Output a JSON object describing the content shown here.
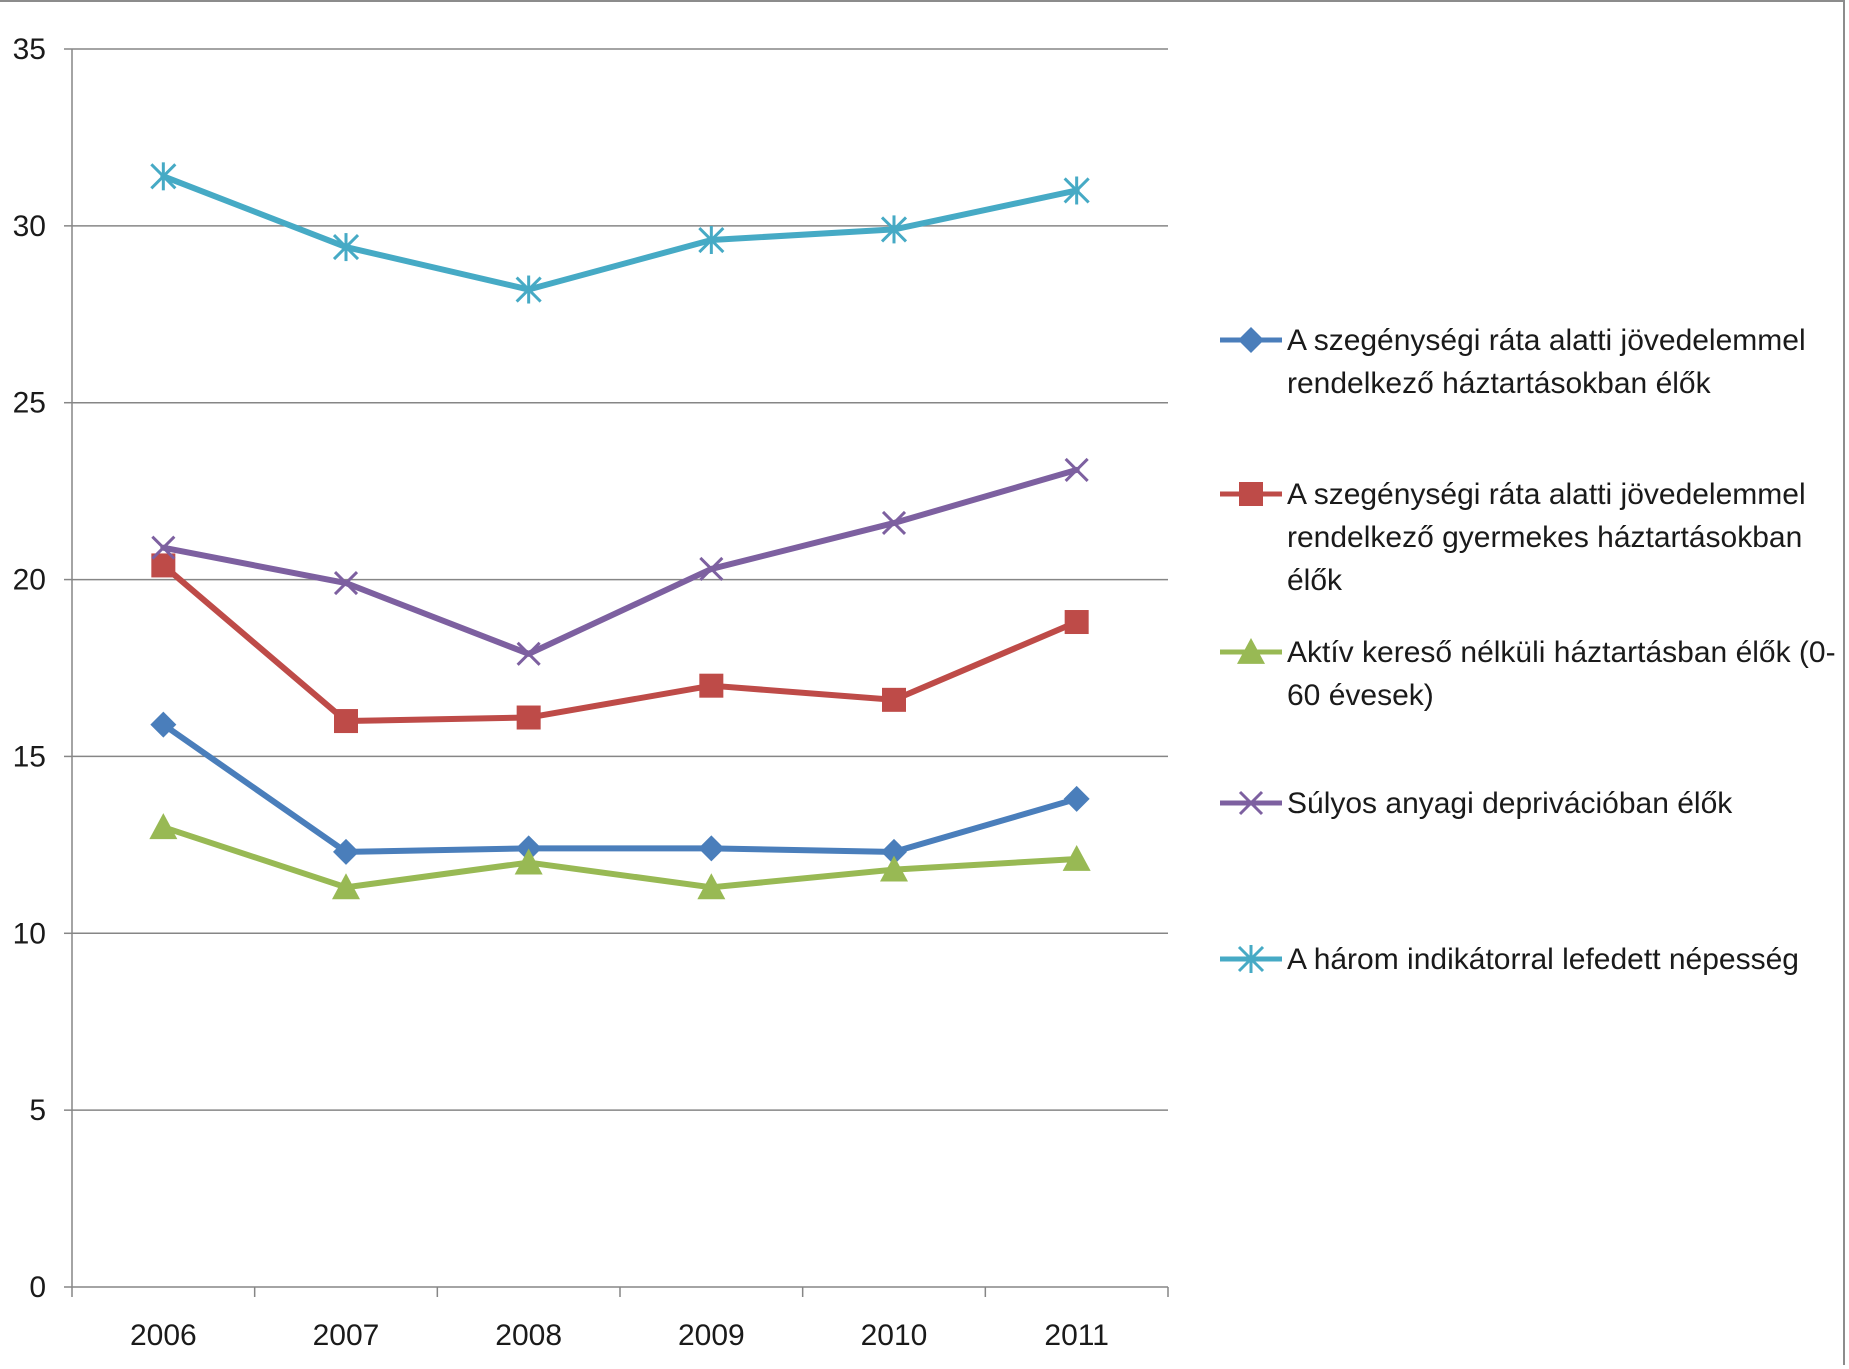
{
  "chart_data": {
    "type": "line",
    "x": [
      "2006",
      "2007",
      "2008",
      "2009",
      "2010",
      "2011"
    ],
    "ylim": [
      0,
      35
    ],
    "yticks": [
      0,
      5,
      10,
      15,
      20,
      25,
      30,
      35
    ],
    "grid": true,
    "legend_position": "right",
    "series": [
      {
        "name": "A szegénységi ráta alatti jövedelemmel rendelkező háztartásokban élők",
        "legend_lines": [
          "A szegénységi ráta alatti jövedelemmel",
          "rendelkező háztartásokban élők"
        ],
        "color": "#4a7ebb",
        "marker": "diamond",
        "values": [
          15.9,
          12.3,
          12.4,
          12.4,
          12.3,
          13.8
        ]
      },
      {
        "name": "A szegénységi ráta alatti jövedelemmel rendelkező gyermekes háztartásokban élők",
        "legend_lines": [
          "A szegénységi ráta alatti jövedelemmel",
          "rendelkező  gyermekes háztartásokban",
          "élők"
        ],
        "color": "#be4b48",
        "marker": "square",
        "values": [
          20.4,
          16.0,
          16.1,
          17.0,
          16.6,
          18.8
        ]
      },
      {
        "name": "Aktív kereső nélküli háztartásban élők (0-60 évesek)",
        "legend_lines": [
          "Aktív kereső nélküli háztartásban élők (0-",
          "60 évesek)"
        ],
        "color": "#98b954",
        "marker": "triangle",
        "values": [
          13.0,
          11.3,
          12.0,
          11.3,
          11.8,
          12.1
        ]
      },
      {
        "name": "Súlyos anyagi deprivációban élők",
        "legend_lines": [
          "Súlyos anyagi deprivációban élők"
        ],
        "color": "#7d60a0",
        "marker": "x",
        "values": [
          20.9,
          19.9,
          17.9,
          20.3,
          21.6,
          23.1
        ]
      },
      {
        "name": "A három indikátorral lefedett népesség",
        "legend_lines": [
          "A három indikátorral lefedett népesség"
        ],
        "color": "#46aac5",
        "marker": "star",
        "values": [
          31.4,
          29.4,
          28.2,
          29.6,
          29.9,
          31.0
        ]
      }
    ]
  }
}
